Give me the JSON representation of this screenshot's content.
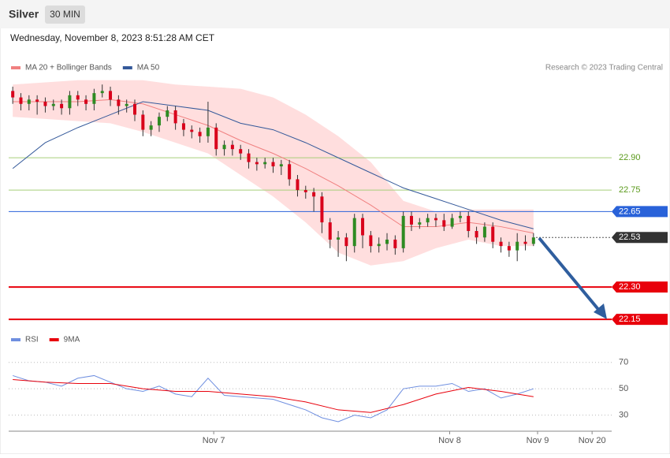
{
  "header": {
    "symbol": "Silver",
    "timeframe": "30 MIN",
    "datetime": "Wednesday, November 8, 2023 8:51:28 AM CET",
    "credit": "Research © 2023 Trading Central"
  },
  "chart_data": [
    {
      "type": "candlestick",
      "ylim": [
        22.11,
        23.27
      ],
      "xlim": [
        -0.5,
        73.8
      ],
      "up_color": "#2e8b22",
      "down_color": "#d9001b",
      "open": [
        23.21,
        23.18,
        23.15,
        23.17,
        23.16,
        23.14,
        23.15,
        23.13,
        23.19,
        23.17,
        23.15,
        23.2,
        23.21,
        23.17,
        23.14,
        23.15,
        23.1,
        23.03,
        23.05,
        23.09,
        23.12,
        23.06,
        23.03,
        23.02,
        23.0,
        23.04,
        22.94,
        22.96,
        22.94,
        22.92,
        22.88,
        22.87,
        22.88,
        22.86,
        22.87,
        22.8,
        22.75,
        22.74,
        22.72,
        22.6,
        22.52,
        22.53,
        22.49,
        22.62,
        22.54,
        22.49,
        22.5,
        22.52,
        22.48,
        22.63,
        22.59,
        22.6,
        22.62,
        22.61,
        22.58,
        22.62,
        22.63,
        22.56,
        22.53,
        22.58,
        22.51,
        22.49,
        22.47,
        22.51,
        22.5
      ],
      "high": [
        23.23,
        23.2,
        23.19,
        23.19,
        23.18,
        23.17,
        23.17,
        23.21,
        23.21,
        23.19,
        23.22,
        23.24,
        23.23,
        23.19,
        23.17,
        23.17,
        23.12,
        23.07,
        23.11,
        23.14,
        23.14,
        23.08,
        23.05,
        23.04,
        23.16,
        23.06,
        22.98,
        22.98,
        22.96,
        22.94,
        22.9,
        22.9,
        22.9,
        22.89,
        22.89,
        22.82,
        22.77,
        22.76,
        22.74,
        22.62,
        22.56,
        22.55,
        22.64,
        22.64,
        22.56,
        22.53,
        22.55,
        22.54,
        22.65,
        22.65,
        22.62,
        22.64,
        22.64,
        22.64,
        22.64,
        22.65,
        22.65,
        22.58,
        22.6,
        22.6,
        22.53,
        22.51,
        22.55,
        22.54,
        22.55
      ],
      "low": [
        23.15,
        23.12,
        23.12,
        23.1,
        23.11,
        23.12,
        23.1,
        23.1,
        23.14,
        23.12,
        23.12,
        23.18,
        23.14,
        23.1,
        23.11,
        23.07,
        23.0,
        23.0,
        23.02,
        23.07,
        23.03,
        23.0,
        22.99,
        22.97,
        22.97,
        22.91,
        22.91,
        22.91,
        22.89,
        22.85,
        22.84,
        22.85,
        22.83,
        22.82,
        22.77,
        22.72,
        22.71,
        22.65,
        22.55,
        22.48,
        22.44,
        22.42,
        22.46,
        22.48,
        22.46,
        22.46,
        22.47,
        22.45,
        22.46,
        22.56,
        22.57,
        22.58,
        22.58,
        22.56,
        22.57,
        22.6,
        22.53,
        22.5,
        22.51,
        22.48,
        22.46,
        22.44,
        22.42,
        22.47,
        22.49
      ],
      "close": [
        23.18,
        23.15,
        23.17,
        23.16,
        23.14,
        23.15,
        23.13,
        23.19,
        23.17,
        23.15,
        23.2,
        23.21,
        23.17,
        23.14,
        23.15,
        23.1,
        23.03,
        23.05,
        23.09,
        23.12,
        23.06,
        23.03,
        23.02,
        23.0,
        23.04,
        22.94,
        22.96,
        22.94,
        22.92,
        22.88,
        22.87,
        22.88,
        22.86,
        22.87,
        22.8,
        22.75,
        22.74,
        22.72,
        22.6,
        22.52,
        22.53,
        22.49,
        22.62,
        22.54,
        22.49,
        22.5,
        22.52,
        22.48,
        22.63,
        22.59,
        22.6,
        22.62,
        22.61,
        22.58,
        22.62,
        22.63,
        22.56,
        22.53,
        22.58,
        22.51,
        22.49,
        22.47,
        22.51,
        22.5,
        22.53
      ],
      "band": {
        "color": "#ffd6d6",
        "x": [
          0,
          4,
          8,
          12,
          16,
          20,
          24,
          28,
          32,
          36,
          40,
          44,
          48,
          52,
          56,
          60,
          64
        ],
        "upper": [
          23.24,
          23.25,
          23.26,
          23.26,
          23.26,
          23.24,
          23.23,
          23.22,
          23.18,
          23.1,
          23.0,
          22.88,
          22.7,
          22.65,
          22.66,
          22.66,
          22.66
        ],
        "lower": [
          23.09,
          23.08,
          23.07,
          23.06,
          23.02,
          22.97,
          22.92,
          22.82,
          22.72,
          22.6,
          22.46,
          22.4,
          22.42,
          22.48,
          22.52,
          22.49,
          22.49
        ]
      },
      "series": [
        {
          "name": "MA 20 + Bollinger Bands",
          "color": "#f08080",
          "x": [
            0,
            4,
            8,
            12,
            16,
            20,
            24,
            28,
            32,
            36,
            40,
            44,
            48,
            52,
            56,
            60,
            64
          ],
          "values": [
            23.16,
            23.16,
            23.16,
            23.17,
            23.15,
            23.1,
            23.05,
            22.98,
            22.92,
            22.85,
            22.77,
            22.68,
            22.58,
            22.58,
            22.6,
            22.58,
            22.55
          ]
        },
        {
          "name": "MA 50",
          "color": "#34599a",
          "x": [
            0,
            4,
            8,
            12,
            16,
            20,
            24,
            28,
            32,
            36,
            40,
            44,
            48,
            52,
            56,
            60,
            64
          ],
          "values": [
            22.85,
            22.97,
            23.04,
            23.1,
            23.16,
            23.14,
            23.12,
            23.06,
            23.03,
            22.97,
            22.9,
            22.83,
            22.76,
            22.71,
            22.66,
            22.61,
            22.57
          ]
        }
      ],
      "levels": [
        {
          "value": 22.9,
          "label": "22.90",
          "color": "#a8cf7a",
          "text_color": "#5b9a1c",
          "label_background": null,
          "line_width": 1,
          "dash": false
        },
        {
          "value": 22.75,
          "label": "22.75",
          "color": "#a8cf7a",
          "text_color": "#5b9a1c",
          "label_background": null,
          "line_width": 1,
          "dash": false
        },
        {
          "value": 22.65,
          "label": "22.65",
          "color": "#2962d9",
          "text_color": "#ffffff",
          "label_background": "#2962d9",
          "line_width": 1,
          "dash": false
        },
        {
          "value": 22.53,
          "label": "22.53",
          "color": "#555555",
          "text_color": "#ffffff",
          "label_background": "#333333",
          "line_width": 1,
          "dash": true
        },
        {
          "value": 22.3,
          "label": "22.30",
          "color": "#e8000b",
          "text_color": "#ffffff",
          "label_background": "#e8000b",
          "line_width": 2,
          "dash": false
        },
        {
          "value": 22.15,
          "label": "22.15",
          "color": "#e8000b",
          "text_color": "#ffffff",
          "label_background": "#e8000b",
          "line_width": 2,
          "dash": false
        }
      ]
    },
    {
      "type": "line",
      "ylim": [
        22,
        80
      ],
      "xlim": [
        -0.5,
        73.8
      ],
      "yticks": [
        70,
        50,
        30
      ],
      "xticks": [
        {
          "value": 24.7,
          "label": "Nov 7"
        },
        {
          "value": 53.7,
          "label": "Nov 8"
        },
        {
          "value": 64.5,
          "label": "Nov 9"
        },
        {
          "value": 71.2,
          "label": "Nov 20"
        }
      ],
      "series": [
        {
          "name": "RSI",
          "color": "#6f8fe0",
          "x": [
            0,
            2,
            4,
            6,
            8,
            10,
            12,
            14,
            16,
            18,
            20,
            22,
            24,
            26,
            28,
            30,
            32,
            34,
            36,
            38,
            40,
            42,
            44,
            46,
            48,
            50,
            52,
            54,
            56,
            58,
            60,
            62,
            64
          ],
          "values": [
            60,
            56,
            55,
            52,
            58,
            60,
            55,
            50,
            48,
            52,
            46,
            44,
            58,
            45,
            44,
            43,
            42,
            38,
            34,
            28,
            25,
            30,
            28,
            34,
            50,
            52,
            52,
            54,
            48,
            50,
            43,
            46,
            50
          ]
        },
        {
          "name": "9MA",
          "color": "#e8000b",
          "x": [
            0,
            4,
            8,
            12,
            16,
            20,
            24,
            28,
            32,
            36,
            40,
            44,
            48,
            52,
            56,
            60,
            64
          ],
          "values": [
            57,
            55,
            54,
            54,
            50,
            48,
            48,
            46,
            44,
            40,
            34,
            32,
            38,
            46,
            51,
            48,
            44
          ]
        }
      ]
    }
  ]
}
